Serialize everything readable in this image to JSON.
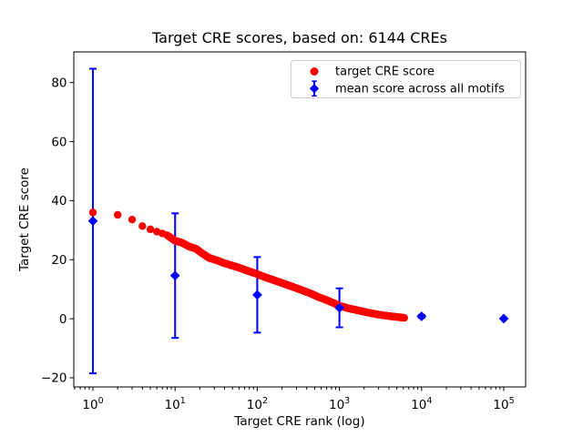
{
  "figure": {
    "title": "Target CRE scores, based on: 6144 CREs",
    "xlabel": "Target CRE rank (log)",
    "ylabel": "Target CRE score"
  },
  "legend": {
    "position": "upper right",
    "entries": [
      {
        "label": "target CRE score",
        "marker": "circle",
        "color": "#ff0000"
      },
      {
        "label": "mean score across all motifs",
        "marker": "diamond-with-errorbar",
        "color": "#0000ff"
      }
    ]
  },
  "chart_data": {
    "type": "scatter",
    "title": "Target CRE scores, based on: 6144 CREs",
    "xlabel": "Target CRE rank (log)",
    "ylabel": "Target CRE score",
    "x_scale": "log10",
    "xlim_log10": [
      -0.233,
      5.266
    ],
    "ylim": [
      -23.1,
      90.4
    ],
    "x_tick_exponents": [
      0,
      1,
      2,
      3,
      4,
      5
    ],
    "y_ticks": [
      -20,
      0,
      20,
      40,
      60,
      80
    ],
    "y_tick_labels": [
      "−20",
      "0",
      "20",
      "40",
      "60",
      "80"
    ],
    "grid": false,
    "series": [
      {
        "name": "target CRE score",
        "type": "scatter",
        "marker": "circle",
        "color": "#ff0000",
        "n_points_total": 6144,
        "points": [
          [
            1,
            36.0
          ],
          [
            2,
            35.2
          ],
          [
            3,
            33.6
          ],
          [
            4,
            31.4
          ],
          [
            5,
            30.3
          ],
          [
            6,
            29.5
          ],
          [
            7,
            28.9
          ],
          [
            8,
            28.3
          ],
          [
            9,
            27.3
          ],
          [
            10,
            26.4
          ],
          [
            12,
            25.8
          ],
          [
            15,
            24.4
          ],
          [
            18,
            23.7
          ],
          [
            22,
            21.9
          ],
          [
            26,
            20.6
          ],
          [
            32,
            19.8
          ],
          [
            38,
            19.0
          ],
          [
            47,
            18.2
          ],
          [
            57,
            17.5
          ],
          [
            70,
            16.6
          ],
          [
            83,
            15.9
          ],
          [
            100,
            15.1
          ],
          [
            121,
            14.2
          ],
          [
            150,
            13.3
          ],
          [
            200,
            12.1
          ],
          [
            270,
            10.8
          ],
          [
            340,
            9.8
          ],
          [
            450,
            8.5
          ],
          [
            560,
            7.3
          ],
          [
            700,
            6.3
          ],
          [
            850,
            5.3
          ],
          [
            1000,
            4.4
          ],
          [
            1300,
            3.5
          ],
          [
            1700,
            2.8
          ],
          [
            2200,
            2.1
          ],
          [
            3000,
            1.4
          ],
          [
            4000,
            0.9
          ],
          [
            5000,
            0.6
          ],
          [
            6144,
            0.3
          ]
        ]
      },
      {
        "name": "mean score across all motifs",
        "type": "errorbar",
        "marker": "diamond",
        "color": "#0000ff",
        "x": [
          1,
          10,
          100,
          1000,
          10000,
          100000
        ],
        "y": [
          33.1,
          14.6,
          8.1,
          3.7,
          0.8,
          0.05
        ],
        "yerr": [
          51.6,
          21.1,
          12.8,
          6.6,
          0.5,
          0.15
        ]
      }
    ]
  }
}
